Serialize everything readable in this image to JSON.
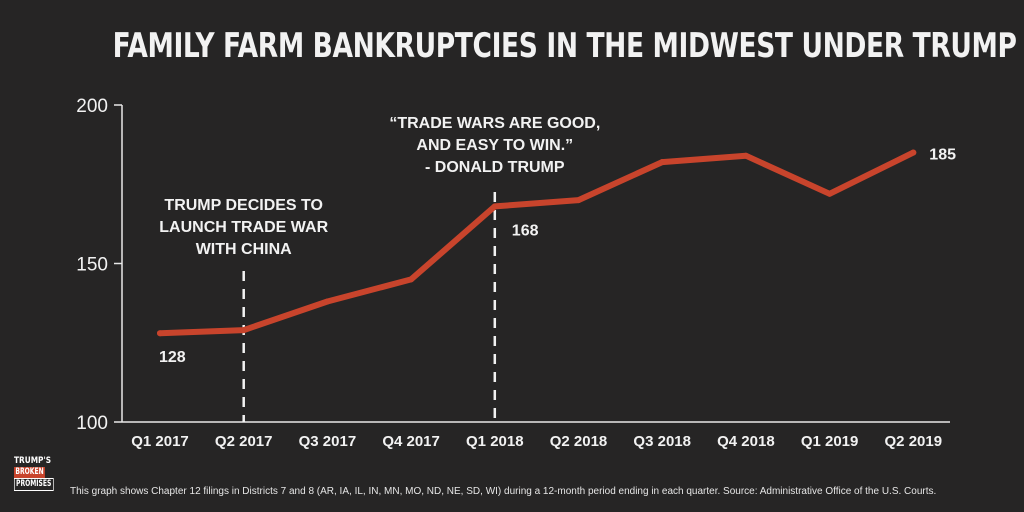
{
  "chart_data": {
    "type": "line",
    "title": "FAMILY FARM BANKRUPTCIES IN THE MIDWEST UNDER TRUMP",
    "categories": [
      "Q1 2017",
      "Q2 2017",
      "Q3 2017",
      "Q4 2017",
      "Q1 2018",
      "Q2 2018",
      "Q3 2018",
      "Q4 2018",
      "Q1 2019",
      "Q2 2019"
    ],
    "series": [
      {
        "values": [
          128,
          129,
          138,
          145,
          168,
          170,
          182,
          184,
          172,
          185
        ]
      }
    ],
    "ylim": [
      100,
      200
    ],
    "yticks": [
      "100",
      "150",
      "200"
    ],
    "data_labels": [
      {
        "index": 0,
        "text": "128"
      },
      {
        "index": 4,
        "text": "168"
      },
      {
        "index": 9,
        "text": "185"
      }
    ],
    "annotations": [
      {
        "index": 1,
        "lines": [
          "TRUMP DECIDES TO",
          "LAUNCH TRADE WAR",
          "WITH CHINA"
        ]
      },
      {
        "index": 4,
        "lines": [
          "“TRADE WARS ARE GOOD,",
          "AND EASY TO WIN.”",
          "- DONALD TRUMP"
        ]
      }
    ],
    "line_color": "#c8442c",
    "grid": false
  },
  "logo": {
    "line1": "TRUMP'S",
    "line2": "BROKEN",
    "line3": "PROMISES"
  },
  "footnote": "This graph shows Chapter 12 filings in Districts 7 and 8 (AR, IA, IL, IN, MN, MO, ND, NE, SD, WI) during a 12-month period ending in each quarter. Source: Administrative Office of the U.S. Courts."
}
